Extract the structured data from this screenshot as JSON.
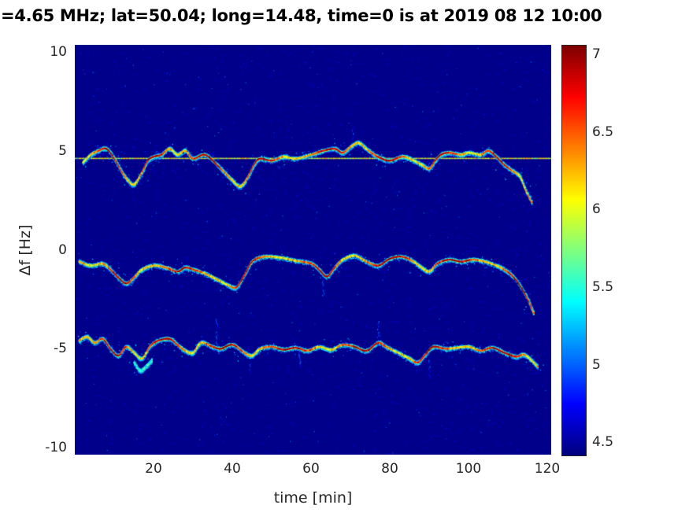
{
  "chart_data": {
    "type": "heatmap",
    "title": "=4.65 MHz;  lat=50.04; long=14.48, time=0 is at 2019 08 12 10:00",
    "xlabel": "time [min]",
    "ylabel": "Δf [Hz]",
    "xlim": [
      0,
      121
    ],
    "ylim": [
      -10.35,
      10.35
    ],
    "xticks": [
      20,
      40,
      60,
      80,
      100,
      120
    ],
    "yticks": [
      10,
      5,
      0,
      -5,
      -10
    ],
    "colorbar": {
      "ticks": [
        4.5,
        5,
        5.5,
        6,
        6.5,
        7
      ],
      "caxis": [
        4.42,
        7.06
      ],
      "colormap": "jet",
      "position": "right"
    },
    "background_value": 4.45,
    "constant_line": {
      "df": 4.62,
      "value_min": 5.7,
      "value_max": 6.35
    },
    "traces": [
      {
        "name": "upper-doppler-trace",
        "intensity": "strong",
        "speckle": 0.42,
        "points": [
          [
            2,
            4.4
          ],
          [
            4,
            4.8
          ],
          [
            6,
            5.0
          ],
          [
            8,
            5.1
          ],
          [
            10,
            4.6
          ],
          [
            12,
            3.9
          ],
          [
            13.5,
            3.5
          ],
          [
            15,
            3.3
          ],
          [
            17,
            3.9
          ],
          [
            18.5,
            4.5
          ],
          [
            20,
            4.7
          ],
          [
            22,
            4.8
          ],
          [
            24,
            5.1
          ],
          [
            26,
            4.8
          ],
          [
            28,
            5.0
          ],
          [
            30,
            4.6
          ],
          [
            33,
            4.8
          ],
          [
            36,
            4.3
          ],
          [
            38,
            3.9
          ],
          [
            40,
            3.5
          ],
          [
            42,
            3.2
          ],
          [
            44,
            3.7
          ],
          [
            45.5,
            4.3
          ],
          [
            47,
            4.6
          ],
          [
            50,
            4.5
          ],
          [
            53,
            4.7
          ],
          [
            56,
            4.6
          ],
          [
            60,
            4.8
          ],
          [
            63,
            5.0
          ],
          [
            66,
            5.1
          ],
          [
            68,
            4.9
          ],
          [
            70,
            5.2
          ],
          [
            72,
            5.4
          ],
          [
            74,
            5.1
          ],
          [
            76,
            4.8
          ],
          [
            78,
            4.6
          ],
          [
            80,
            4.5
          ],
          [
            83,
            4.7
          ],
          [
            85,
            4.6
          ],
          [
            88,
            4.3
          ],
          [
            90,
            4.1
          ],
          [
            91.5,
            4.5
          ],
          [
            93,
            4.8
          ],
          [
            95,
            4.9
          ],
          [
            98,
            4.8
          ],
          [
            100,
            4.9
          ],
          [
            103,
            4.8
          ],
          [
            105,
            5.0
          ],
          [
            107,
            4.7
          ],
          [
            109,
            4.3
          ],
          [
            111,
            4.0
          ],
          [
            113,
            3.7
          ],
          [
            114.5,
            3.0
          ],
          [
            116,
            2.4
          ]
        ]
      },
      {
        "name": "middle-doppler-trace",
        "intensity": "strong",
        "speckle": 0.3,
        "points": [
          [
            1,
            -0.6
          ],
          [
            4,
            -0.8
          ],
          [
            7,
            -0.7
          ],
          [
            9,
            -1.0
          ],
          [
            11,
            -1.4
          ],
          [
            13,
            -1.7
          ],
          [
            15,
            -1.4
          ],
          [
            17,
            -1.0
          ],
          [
            20,
            -0.8
          ],
          [
            23,
            -0.9
          ],
          [
            26,
            -1.1
          ],
          [
            28,
            -0.9
          ],
          [
            30,
            -1.0
          ],
          [
            33,
            -1.2
          ],
          [
            36,
            -1.5
          ],
          [
            39,
            -1.8
          ],
          [
            41,
            -1.9
          ],
          [
            43,
            -1.3
          ],
          [
            45,
            -0.6
          ],
          [
            48,
            -0.35
          ],
          [
            52,
            -0.4
          ],
          [
            56,
            -0.55
          ],
          [
            60,
            -0.7
          ],
          [
            62,
            -1.0
          ],
          [
            64,
            -1.35
          ],
          [
            66,
            -0.9
          ],
          [
            68,
            -0.5
          ],
          [
            71,
            -0.3
          ],
          [
            74,
            -0.6
          ],
          [
            77,
            -0.8
          ],
          [
            80,
            -0.45
          ],
          [
            83,
            -0.35
          ],
          [
            86,
            -0.6
          ],
          [
            88,
            -0.9
          ],
          [
            90,
            -1.1
          ],
          [
            92,
            -0.7
          ],
          [
            95,
            -0.5
          ],
          [
            98,
            -0.6
          ],
          [
            101,
            -0.5
          ],
          [
            104,
            -0.6
          ],
          [
            107,
            -0.8
          ],
          [
            109,
            -1.0
          ],
          [
            111,
            -1.3
          ],
          [
            113,
            -1.8
          ],
          [
            115,
            -2.5
          ],
          [
            116.5,
            -3.2
          ]
        ]
      },
      {
        "name": "lower-doppler-trace",
        "intensity": "strong",
        "speckle": 0.36,
        "points": [
          [
            1,
            -4.6
          ],
          [
            3,
            -4.4
          ],
          [
            5,
            -4.7
          ],
          [
            7,
            -4.5
          ],
          [
            9,
            -5.0
          ],
          [
            11,
            -5.35
          ],
          [
            13,
            -4.9
          ],
          [
            15,
            -5.2
          ],
          [
            17,
            -5.5
          ],
          [
            19,
            -4.9
          ],
          [
            21,
            -4.6
          ],
          [
            24,
            -4.5
          ],
          [
            26,
            -4.8
          ],
          [
            28,
            -5.1
          ],
          [
            30,
            -5.2
          ],
          [
            32,
            -4.7
          ],
          [
            35,
            -4.9
          ],
          [
            37,
            -5.0
          ],
          [
            40,
            -4.8
          ],
          [
            43,
            -5.2
          ],
          [
            45,
            -5.35
          ],
          [
            47,
            -5.0
          ],
          [
            50,
            -4.9
          ],
          [
            53,
            -5.05
          ],
          [
            56,
            -4.95
          ],
          [
            59,
            -5.1
          ],
          [
            62,
            -4.9
          ],
          [
            65,
            -5.05
          ],
          [
            68,
            -4.8
          ],
          [
            71,
            -4.9
          ],
          [
            74,
            -5.1
          ],
          [
            77,
            -4.7
          ],
          [
            79,
            -4.9
          ],
          [
            82,
            -5.2
          ],
          [
            85,
            -5.5
          ],
          [
            87,
            -5.7
          ],
          [
            89,
            -5.3
          ],
          [
            91,
            -4.9
          ],
          [
            94,
            -5.0
          ],
          [
            97,
            -4.95
          ],
          [
            100,
            -4.9
          ],
          [
            103,
            -5.1
          ],
          [
            106,
            -4.95
          ],
          [
            109,
            -5.2
          ],
          [
            112,
            -5.4
          ],
          [
            114,
            -5.3
          ],
          [
            116,
            -5.6
          ],
          [
            117.5,
            -5.9
          ]
        ]
      },
      {
        "name": "lower-trace-spur",
        "intensity": "weak",
        "speckle": 0.25,
        "points": [
          [
            15,
            -5.7
          ],
          [
            16.5,
            -6.1
          ],
          [
            18,
            -5.9
          ],
          [
            19.5,
            -5.6
          ]
        ]
      }
    ],
    "streaks": [
      {
        "t": 36,
        "df_from": -4.9,
        "df_to": -3.5
      },
      {
        "t": 77,
        "df_from": -4.8,
        "df_to": -3.6
      },
      {
        "t": 44.5,
        "df_from": -5.3,
        "df_to": -6.2
      },
      {
        "t": 63,
        "df_from": -1.4,
        "df_to": -2.3
      },
      {
        "t": 70.5,
        "df_from": 5.3,
        "df_to": 6.2
      },
      {
        "t": 90,
        "df_from": -5.4,
        "df_to": -6.5
      },
      {
        "t": 57,
        "df_from": -5.0,
        "df_to": -5.9
      }
    ]
  }
}
